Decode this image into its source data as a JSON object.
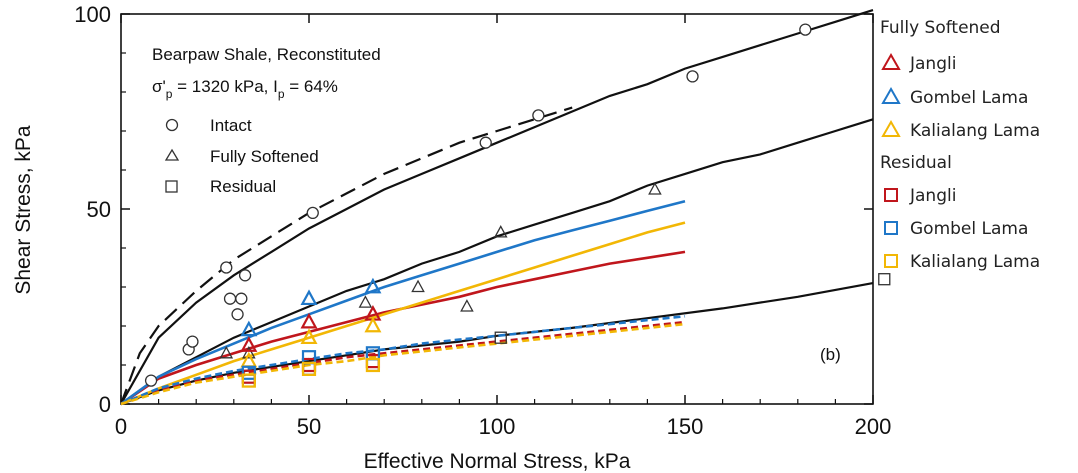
{
  "chart_data": {
    "type": "scatter",
    "xlabel": "Effective Normal Stress, kPa",
    "ylabel": "Shear Stress, kPa",
    "xlim": [
      0,
      200
    ],
    "ylim": [
      0,
      100
    ],
    "xticks": [
      0,
      50,
      100,
      150,
      200
    ],
    "yticks": [
      0,
      50,
      100
    ],
    "panel_label": "(b)",
    "inset": {
      "line1": "Bearpaw Shale, Reconstituted",
      "line2": "σ'p = 1320 kPa, Ip = 64%",
      "markers": [
        {
          "symbol": "circle",
          "label": "Intact"
        },
        {
          "symbol": "triangle",
          "label": "Fully Softened"
        },
        {
          "symbol": "square",
          "label": "Residual"
        }
      ]
    },
    "legend": {
      "placement": "right",
      "groups": [
        {
          "title": "Fully Softened",
          "symbol": "triangle",
          "items": [
            {
              "label": "Jangli",
              "color": "#c0161c"
            },
            {
              "label": "Gombel Lama",
              "color": "#1f77c8"
            },
            {
              "label": "Kalialang Lama",
              "color": "#f2b705"
            }
          ]
        },
        {
          "title": "Residual",
          "symbol": "square",
          "items": [
            {
              "label": "Jangli",
              "color": "#c0161c"
            },
            {
              "label": "Gombel Lama",
              "color": "#1f77c8"
            },
            {
              "label": "Kalialang Lama",
              "color": "#f2b705"
            }
          ]
        }
      ]
    },
    "black_points": {
      "intact": [
        [
          8,
          6
        ],
        [
          18,
          14
        ],
        [
          19,
          16
        ],
        [
          28,
          35
        ],
        [
          29,
          27
        ],
        [
          31,
          23
        ],
        [
          32,
          27
        ],
        [
          33,
          33
        ],
        [
          51,
          49
        ],
        [
          97,
          67
        ],
        [
          111,
          74
        ],
        [
          152,
          84
        ],
        [
          182,
          96
        ]
      ],
      "fully_softened": [
        [
          28,
          13
        ],
        [
          34,
          13
        ],
        [
          65,
          26
        ],
        [
          79,
          30
        ],
        [
          92,
          25
        ],
        [
          101,
          44
        ],
        [
          142,
          55
        ]
      ],
      "residual": [
        [
          34,
          6
        ],
        [
          50,
          9
        ],
        [
          67,
          10
        ],
        [
          101,
          17
        ],
        [
          203,
          32
        ]
      ]
    },
    "black_curves": {
      "intact_solid": [
        [
          0,
          0
        ],
        [
          10,
          17
        ],
        [
          20,
          26
        ],
        [
          30,
          33
        ],
        [
          40,
          39
        ],
        [
          50,
          45
        ],
        [
          60,
          50
        ],
        [
          70,
          55
        ],
        [
          80,
          59
        ],
        [
          90,
          63
        ],
        [
          100,
          67
        ],
        [
          110,
          71
        ],
        [
          120,
          75
        ],
        [
          130,
          79
        ],
        [
          140,
          82
        ],
        [
          150,
          86
        ],
        [
          160,
          89
        ],
        [
          170,
          92
        ],
        [
          180,
          95
        ],
        [
          190,
          98
        ],
        [
          200,
          101
        ]
      ],
      "intact_dashed": [
        [
          0,
          0
        ],
        [
          5,
          13
        ],
        [
          10,
          20
        ],
        [
          20,
          29
        ],
        [
          30,
          37
        ],
        [
          40,
          43
        ],
        [
          50,
          49
        ],
        [
          60,
          54
        ],
        [
          70,
          59
        ],
        [
          80,
          63
        ],
        [
          90,
          67
        ],
        [
          100,
          70
        ],
        [
          110,
          73
        ],
        [
          120,
          76
        ]
      ],
      "fully_softened": [
        [
          0,
          0
        ],
        [
          10,
          7
        ],
        [
          20,
          12
        ],
        [
          30,
          17
        ],
        [
          40,
          21
        ],
        [
          50,
          25
        ],
        [
          60,
          29
        ],
        [
          70,
          32
        ],
        [
          80,
          36
        ],
        [
          90,
          39
        ],
        [
          100,
          43
        ],
        [
          110,
          46
        ],
        [
          120,
          49
        ],
        [
          130,
          52
        ],
        [
          140,
          56
        ],
        [
          150,
          59
        ],
        [
          160,
          62
        ],
        [
          170,
          64
        ],
        [
          180,
          67
        ],
        [
          190,
          70
        ],
        [
          200,
          73
        ]
      ],
      "residual": [
        [
          0,
          0
        ],
        [
          10,
          3.5
        ],
        [
          20,
          6
        ],
        [
          30,
          8
        ],
        [
          40,
          9.5
        ],
        [
          50,
          11
        ],
        [
          60,
          12.5
        ],
        [
          70,
          14
        ],
        [
          80,
          15
        ],
        [
          90,
          16
        ],
        [
          100,
          17.5
        ],
        [
          120,
          19.5
        ],
        [
          140,
          22
        ],
        [
          160,
          24.5
        ],
        [
          180,
          27.5
        ],
        [
          200,
          31
        ]
      ]
    },
    "series": [
      {
        "group": "fully_softened",
        "site": "Jangli",
        "color": "#c0161c",
        "points": [
          [
            34,
            15
          ],
          [
            50,
            21
          ],
          [
            67,
            23
          ]
        ],
        "curve": [
          [
            0,
            0
          ],
          [
            10,
            6.5
          ],
          [
            20,
            10
          ],
          [
            30,
            13
          ],
          [
            40,
            16
          ],
          [
            50,
            18.5
          ],
          [
            60,
            21
          ],
          [
            70,
            23.5
          ],
          [
            80,
            25.5
          ],
          [
            90,
            27.5
          ],
          [
            100,
            30
          ],
          [
            110,
            32
          ],
          [
            120,
            34
          ],
          [
            130,
            36
          ],
          [
            140,
            37.5
          ],
          [
            150,
            39
          ]
        ]
      },
      {
        "group": "fully_softened",
        "site": "Gombel Lama",
        "color": "#1f77c8",
        "points": [
          [
            34,
            19
          ],
          [
            50,
            27
          ],
          [
            67,
            30
          ]
        ],
        "curve": [
          [
            0,
            0
          ],
          [
            10,
            7
          ],
          [
            20,
            11.5
          ],
          [
            30,
            15.5
          ],
          [
            40,
            19.5
          ],
          [
            50,
            23
          ],
          [
            60,
            26.5
          ],
          [
            70,
            30
          ],
          [
            80,
            33
          ],
          [
            90,
            36
          ],
          [
            100,
            39
          ],
          [
            110,
            42
          ],
          [
            120,
            44.5
          ],
          [
            130,
            47
          ],
          [
            140,
            49.5
          ],
          [
            150,
            52
          ]
        ]
      },
      {
        "group": "fully_softened",
        "site": "Kalialang Lama",
        "color": "#f2b705",
        "points": [
          [
            34,
            11
          ],
          [
            50,
            17
          ],
          [
            67,
            20
          ]
        ],
        "curve": [
          [
            0,
            0
          ],
          [
            10,
            4
          ],
          [
            20,
            7.5
          ],
          [
            30,
            11
          ],
          [
            40,
            14
          ],
          [
            50,
            17
          ],
          [
            60,
            20
          ],
          [
            70,
            23
          ],
          [
            80,
            26
          ],
          [
            90,
            29
          ],
          [
            100,
            32
          ],
          [
            110,
            35
          ],
          [
            120,
            38
          ],
          [
            130,
            41
          ],
          [
            140,
            44
          ],
          [
            150,
            46.5
          ]
        ]
      },
      {
        "group": "residual",
        "site": "Jangli",
        "color": "#c0161c",
        "points": [
          [
            34,
            7
          ],
          [
            50,
            10
          ],
          [
            67,
            11
          ]
        ],
        "curve": [
          [
            0,
            0
          ],
          [
            10,
            3.5
          ],
          [
            20,
            6
          ],
          [
            30,
            7.5
          ],
          [
            40,
            9
          ],
          [
            50,
            10.5
          ],
          [
            60,
            12
          ],
          [
            70,
            13
          ],
          [
            80,
            14
          ],
          [
            90,
            15
          ],
          [
            100,
            16
          ],
          [
            110,
            17
          ],
          [
            120,
            18
          ],
          [
            130,
            19
          ],
          [
            140,
            20
          ],
          [
            150,
            21
          ]
        ]
      },
      {
        "group": "residual",
        "site": "Gombel Lama",
        "color": "#1f77c8",
        "points": [
          [
            34,
            8
          ],
          [
            50,
            12
          ],
          [
            67,
            13
          ]
        ],
        "curve": [
          [
            0,
            0
          ],
          [
            10,
            4
          ],
          [
            20,
            6.5
          ],
          [
            30,
            8.5
          ],
          [
            40,
            10
          ],
          [
            50,
            11.5
          ],
          [
            60,
            13
          ],
          [
            70,
            14
          ],
          [
            80,
            15.5
          ],
          [
            90,
            16.5
          ],
          [
            100,
            17.5
          ],
          [
            110,
            18.5
          ],
          [
            120,
            19.5
          ],
          [
            130,
            20.5
          ],
          [
            140,
            21.5
          ],
          [
            150,
            22.5
          ]
        ]
      },
      {
        "group": "residual",
        "site": "Kalialang Lama",
        "color": "#f2b705",
        "points": [
          [
            34,
            6
          ],
          [
            50,
            9
          ],
          [
            67,
            10
          ]
        ],
        "curve": [
          [
            0,
            0
          ],
          [
            10,
            3
          ],
          [
            20,
            5.5
          ],
          [
            30,
            7
          ],
          [
            40,
            8.5
          ],
          [
            50,
            10
          ],
          [
            60,
            11
          ],
          [
            70,
            12.5
          ],
          [
            80,
            13.5
          ],
          [
            90,
            14.5
          ],
          [
            100,
            15.5
          ],
          [
            110,
            16.5
          ],
          [
            120,
            17.5
          ],
          [
            130,
            18.5
          ],
          [
            140,
            19.5
          ],
          [
            150,
            20.5
          ]
        ]
      }
    ]
  }
}
